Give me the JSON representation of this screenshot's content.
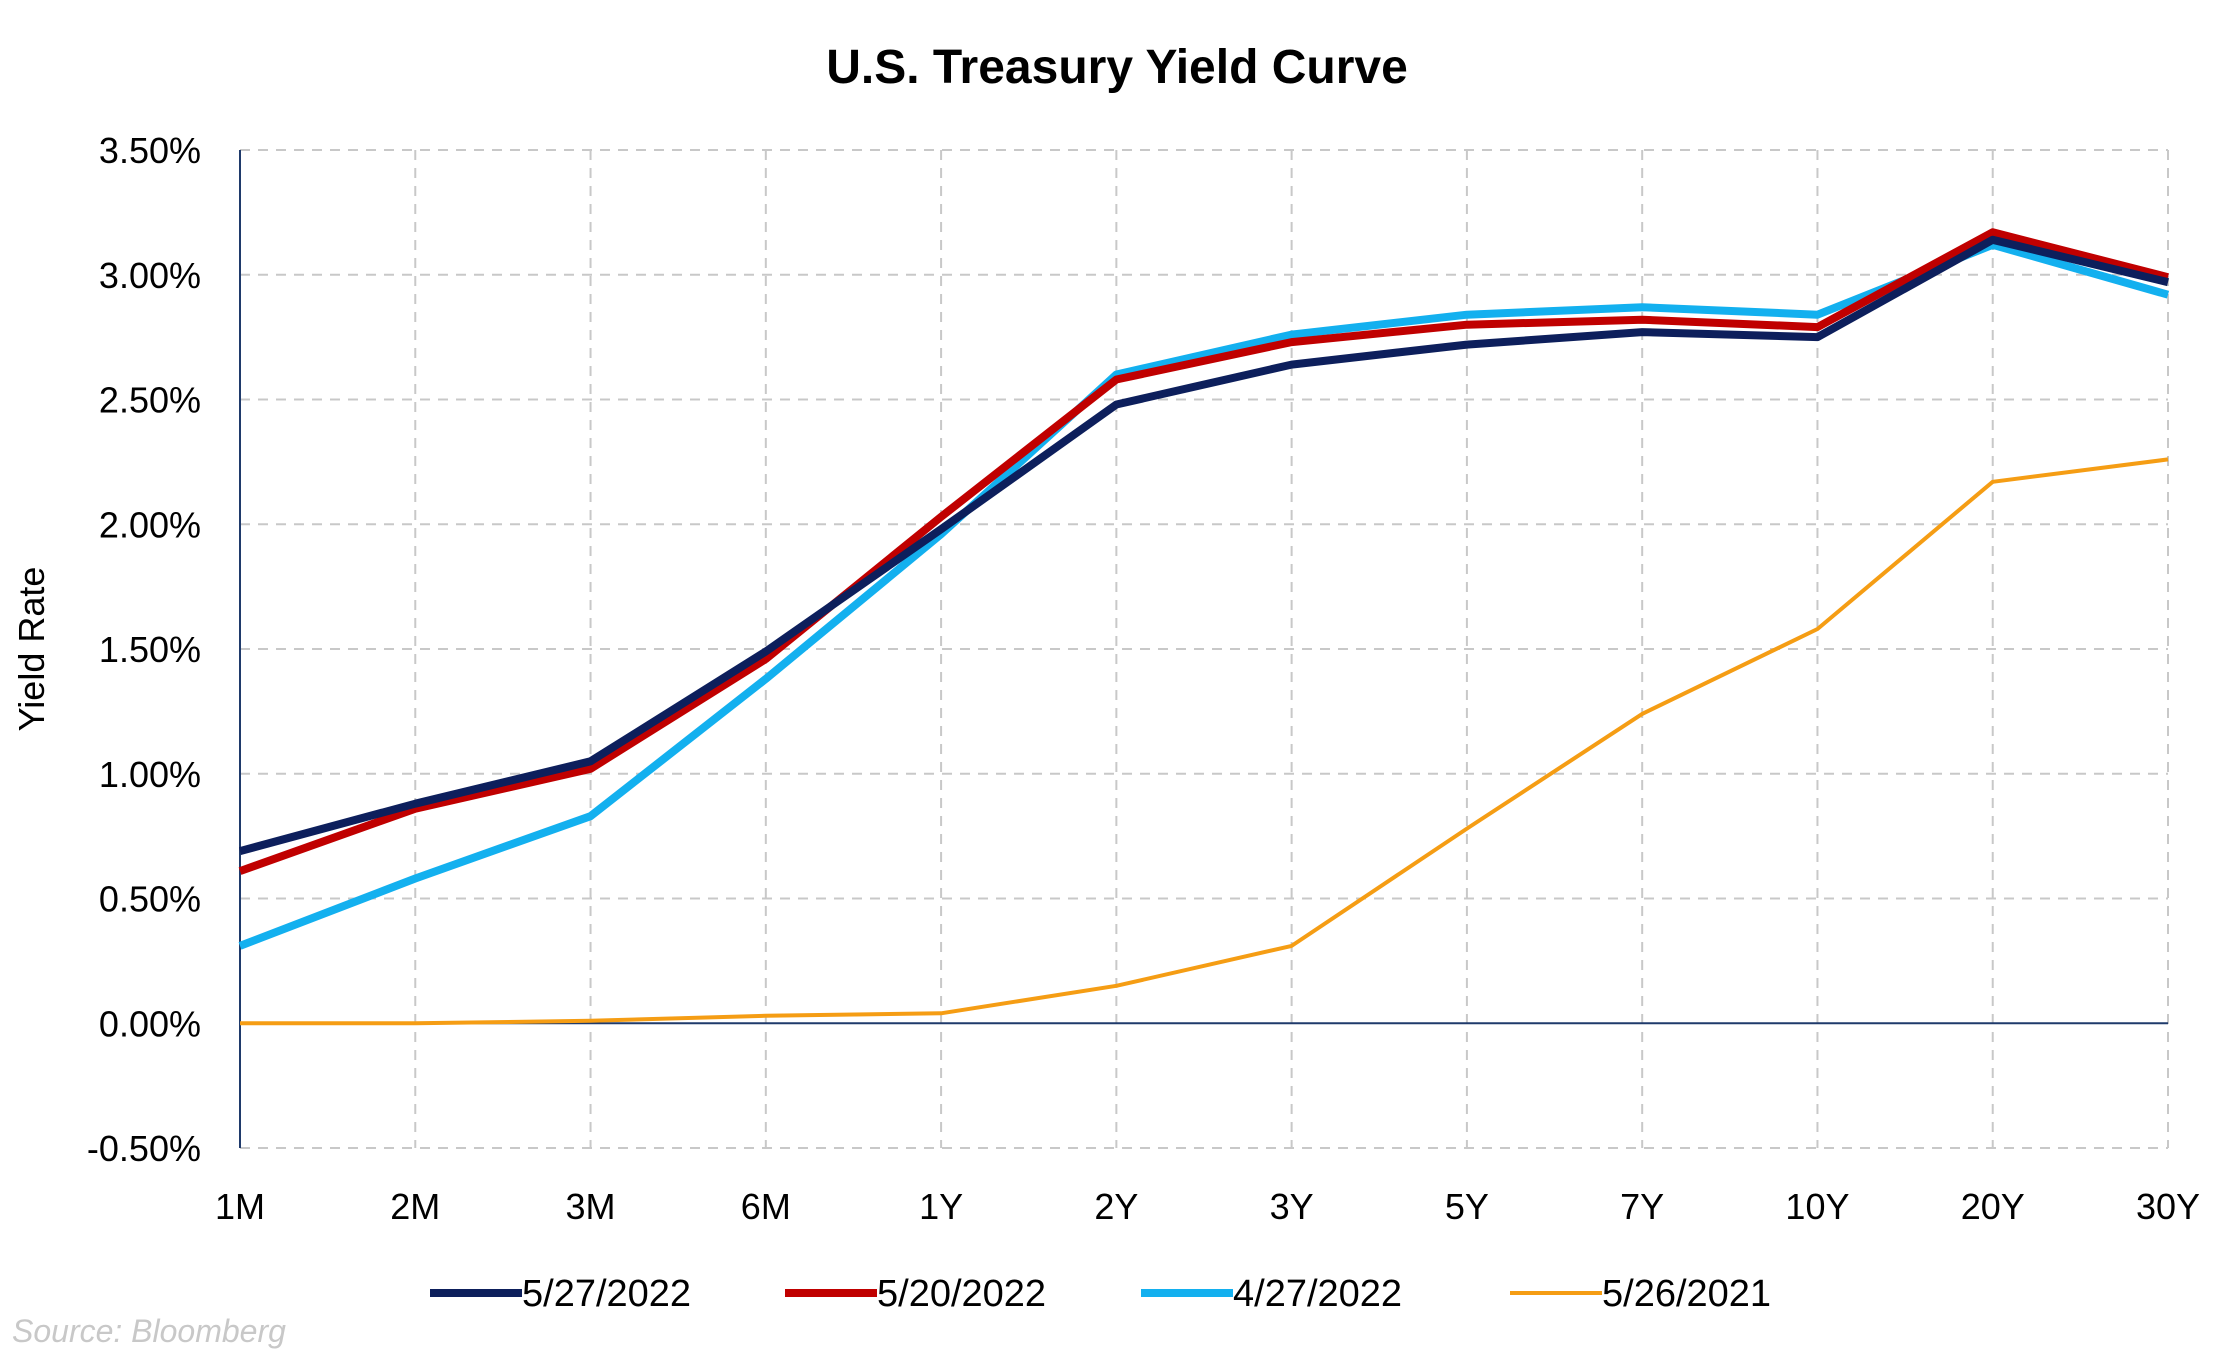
{
  "chart_data": {
    "type": "line",
    "title": "U.S. Treasury Yield Curve",
    "xlabel": "",
    "ylabel": "Yield Rate",
    "categories": [
      "1M",
      "2M",
      "3M",
      "6M",
      "1Y",
      "2Y",
      "3Y",
      "5Y",
      "7Y",
      "10Y",
      "20Y",
      "30Y"
    ],
    "y_ticks": [
      "3.50%",
      "3.00%",
      "2.50%",
      "2.00%",
      "1.50%",
      "1.00%",
      "0.50%",
      "0.00%",
      "-0.50%"
    ],
    "ylim": [
      -0.5,
      3.5
    ],
    "y_tick_values": [
      3.5,
      3.0,
      2.5,
      2.0,
      1.5,
      1.0,
      0.5,
      0.0,
      -0.5
    ],
    "grid": true,
    "legend_position": "bottom",
    "series": [
      {
        "name": "5/27/2022",
        "color": "#0d1f5c",
        "values": [
          0.69,
          0.88,
          1.05,
          1.49,
          1.98,
          2.48,
          2.64,
          2.72,
          2.77,
          2.75,
          3.14,
          2.97
        ]
      },
      {
        "name": "5/20/2022",
        "color": "#c00000",
        "values": [
          0.61,
          0.86,
          1.02,
          1.46,
          2.03,
          2.58,
          2.73,
          2.8,
          2.82,
          2.79,
          3.17,
          2.99
        ]
      },
      {
        "name": "4/27/2022",
        "color": "#13b0ef",
        "values": [
          0.31,
          0.58,
          0.83,
          1.38,
          1.96,
          2.6,
          2.76,
          2.84,
          2.87,
          2.84,
          3.12,
          2.92
        ]
      },
      {
        "name": "5/26/2021",
        "color": "#f59d14",
        "values": [
          0.0,
          0.0,
          0.01,
          0.03,
          0.04,
          0.15,
          0.31,
          0.78,
          1.24,
          1.58,
          2.17,
          2.26
        ]
      }
    ]
  },
  "source": "Source: Bloomberg"
}
